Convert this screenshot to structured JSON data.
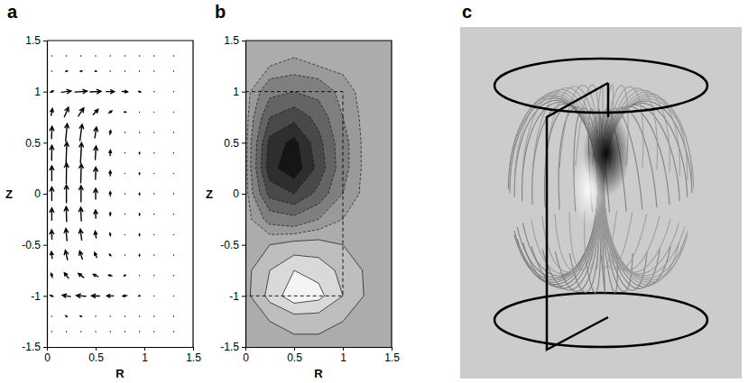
{
  "chart_data": [
    {
      "type": "quiver",
      "title": "a",
      "x_label": "R",
      "y_label": "Z",
      "color": "#000000",
      "xlim": [
        0,
        1.5
      ],
      "ylim": [
        -1.5,
        1.5
      ],
      "xticks": [
        0,
        0.5,
        1,
        1.5
      ],
      "yticks": [
        -1.5,
        -1,
        -0.5,
        0,
        0.5,
        1,
        1.5
      ],
      "r": [
        0.05,
        0.2,
        0.35,
        0.5,
        0.65,
        0.8,
        0.95,
        1.1,
        1.3
      ],
      "z": [
        -1.35,
        -1.2,
        -1.0,
        -0.8,
        -0.6,
        -0.4,
        -0.2,
        0,
        0.2,
        0.4,
        0.6,
        0.8,
        1.0,
        1.2,
        1.35
      ],
      "u": [
        [
          0.02,
          0.03,
          0.03,
          0.02,
          0.02,
          0.01,
          0.01,
          0,
          0
        ],
        [
          -0.03,
          -0.05,
          -0.05,
          -0.04,
          -0.03,
          -0.02,
          -0.01,
          0,
          0
        ],
        [
          -0.1,
          -0.3,
          -0.35,
          -0.3,
          -0.25,
          -0.15,
          -0.05,
          -0.01,
          0
        ],
        [
          -0.05,
          -0.15,
          -0.2,
          -0.18,
          -0.12,
          -0.06,
          -0.02,
          0,
          0
        ],
        [
          -0.03,
          -0.08,
          -0.1,
          -0.08,
          -0.05,
          -0.02,
          0,
          0,
          0
        ],
        [
          -0.01,
          -0.04,
          -0.05,
          -0.04,
          -0.02,
          0,
          0,
          0,
          0
        ],
        [
          0,
          -0.02,
          -0.02,
          -0.01,
          0,
          0,
          0,
          0,
          0
        ],
        [
          0,
          0,
          0,
          0,
          0,
          0,
          0,
          0,
          0
        ],
        [
          0,
          0.01,
          0.02,
          0.01,
          0,
          0,
          0,
          0,
          0
        ],
        [
          0.01,
          0.03,
          0.04,
          0.03,
          0.01,
          0,
          0,
          0,
          0
        ],
        [
          0.02,
          0.06,
          0.08,
          0.06,
          0.03,
          0.01,
          0,
          0,
          0
        ],
        [
          0.05,
          0.15,
          0.2,
          0.18,
          0.12,
          0.06,
          0.02,
          0,
          0
        ],
        [
          0.1,
          0.35,
          0.45,
          0.4,
          0.3,
          0.2,
          0.08,
          0.02,
          0
        ],
        [
          0.03,
          0.06,
          0.06,
          0.05,
          0.04,
          0.02,
          0.01,
          0,
          0
        ],
        [
          0.02,
          0.02,
          0.02,
          0.02,
          0.01,
          0.01,
          0,
          0,
          0
        ]
      ],
      "w": [
        [
          0.02,
          0.02,
          0.02,
          0.01,
          0.01,
          0,
          0,
          0,
          0
        ],
        [
          0.03,
          0.04,
          0.03,
          0.02,
          0.01,
          0,
          0,
          0,
          0
        ],
        [
          0.05,
          0.05,
          0.03,
          0.01,
          0,
          -0.02,
          -0.01,
          0,
          0
        ],
        [
          0.15,
          0.2,
          0.15,
          0.08,
          0.02,
          -0.03,
          -0.03,
          0,
          0
        ],
        [
          0.25,
          0.35,
          0.3,
          0.18,
          0.06,
          -0.04,
          -0.05,
          0,
          0
        ],
        [
          0.35,
          0.45,
          0.4,
          0.25,
          0.1,
          -0.04,
          -0.06,
          0,
          0
        ],
        [
          0.45,
          0.55,
          0.5,
          0.3,
          0.12,
          -0.03,
          -0.06,
          0,
          0
        ],
        [
          0.5,
          0.65,
          0.6,
          0.4,
          0.15,
          -0.02,
          -0.06,
          -0.01,
          0
        ],
        [
          0.55,
          0.75,
          0.7,
          0.45,
          0.18,
          0,
          -0.05,
          -0.01,
          0
        ],
        [
          0.55,
          0.8,
          0.75,
          0.5,
          0.2,
          0,
          -0.05,
          0,
          0
        ],
        [
          0.45,
          0.65,
          0.6,
          0.4,
          0.15,
          0,
          -0.04,
          0,
          0
        ],
        [
          0.25,
          0.35,
          0.3,
          0.2,
          0.08,
          0,
          -0.03,
          0,
          0
        ],
        [
          0.05,
          0.05,
          0.03,
          0.02,
          0,
          -0.01,
          -0.02,
          0,
          0
        ],
        [
          0.01,
          0.01,
          0.01,
          0,
          0,
          0,
          0,
          0,
          0
        ],
        [
          0,
          0,
          0,
          0,
          0,
          0,
          0,
          0,
          0
        ]
      ]
    },
    {
      "type": "contour",
      "title": "b",
      "x_label": "R",
      "y_label": "Z",
      "xlim": [
        0,
        1.5
      ],
      "ylim": [
        -1.5,
        1.5
      ],
      "xticks": [
        0,
        0.5,
        1,
        1.5
      ],
      "yticks": [
        -1.5,
        -1,
        -0.5,
        0,
        0.5,
        1,
        1.5
      ],
      "r": [
        0,
        0.25,
        0.5,
        0.75,
        1,
        1.25,
        1.5
      ],
      "z": [
        -1.5,
        -1.25,
        -1,
        -0.75,
        -0.5,
        -0.25,
        0,
        0.25,
        0.5,
        0.75,
        1,
        1.25,
        1.5
      ],
      "values": [
        [
          0,
          0,
          0,
          0,
          0,
          0,
          0
        ],
        [
          0,
          0.1,
          0.2,
          0.2,
          0.1,
          0,
          0
        ],
        [
          0,
          0.5,
          0.9,
          0.8,
          0.4,
          0.05,
          0
        ],
        [
          0,
          0.4,
          0.7,
          0.6,
          0.3,
          0.05,
          0
        ],
        [
          0,
          0.1,
          0.2,
          0.2,
          0.1,
          0,
          0
        ],
        [
          0,
          -0.4,
          -0.5,
          -0.3,
          -0.1,
          0,
          0
        ],
        [
          0,
          -1.0,
          -1.2,
          -0.8,
          -0.3,
          0,
          0
        ],
        [
          0,
          -1.4,
          -1.7,
          -1.1,
          -0.4,
          0,
          0
        ],
        [
          0,
          -1.3,
          -1.6,
          -1.0,
          -0.4,
          0,
          0
        ],
        [
          0,
          -0.9,
          -1.1,
          -0.8,
          -0.3,
          0,
          0
        ],
        [
          0,
          -0.5,
          -0.6,
          -0.5,
          -0.2,
          0,
          0.05
        ],
        [
          0,
          -0.1,
          -0.15,
          -0.1,
          -0.05,
          0,
          0
        ],
        [
          0,
          0,
          0,
          0,
          0,
          0,
          0
        ]
      ],
      "levels": [
        -1.5,
        -1.2,
        -0.9,
        -0.6,
        -0.3,
        -0.1,
        0.1,
        0.4,
        0.7
      ],
      "cylinder": {
        "r": 1,
        "z": [
          -1,
          1
        ]
      }
    },
    {
      "type": "illustration",
      "title": "c"
    }
  ]
}
